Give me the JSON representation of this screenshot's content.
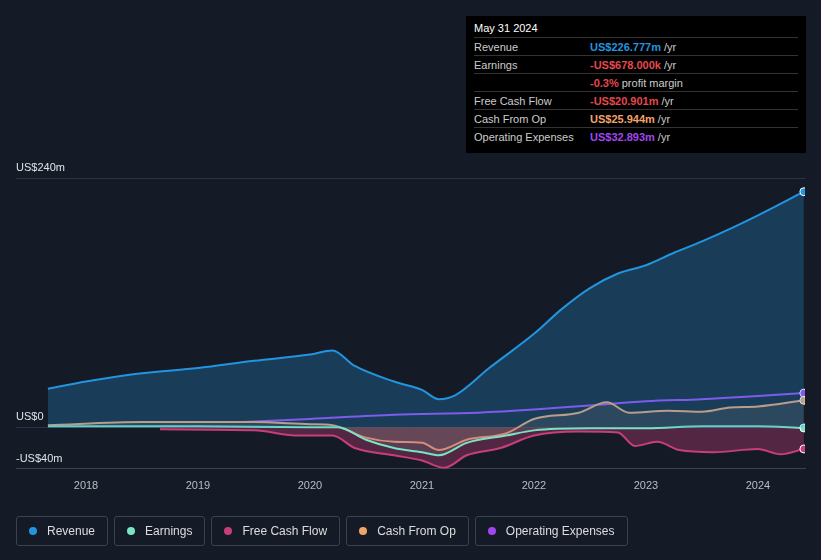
{
  "chart_data": {
    "type": "line",
    "xlim": [
      2017.375,
      2024.42
    ],
    "xticks": [
      2018,
      2019,
      2020,
      2021,
      2022,
      2023,
      2024
    ],
    "ylim": [
      -40,
      240
    ],
    "yticks": [
      {
        "value": -40,
        "label": "-US$40m"
      },
      {
        "value": 0,
        "label": "US$0"
      },
      {
        "value": 240,
        "label": "US$240m"
      }
    ],
    "grid": true,
    "legend": "bottom",
    "series": [
      {
        "name": "Revenue",
        "color": "#2394df",
        "x": [
          2017.66,
          2018.0,
          2018.5,
          2019.0,
          2019.5,
          2020.0,
          2020.2,
          2020.4,
          2020.75,
          2021.0,
          2021.15,
          2021.3,
          2021.6,
          2022.0,
          2022.25,
          2022.5,
          2022.75,
          2023.0,
          2023.25,
          2023.5,
          2023.75,
          2024.0,
          2024.41
        ],
        "values": [
          37,
          44,
          52,
          57,
          64,
          70,
          74,
          59,
          44,
          36,
          27,
          31,
          57,
          90,
          114,
          134,
          148,
          156,
          168,
          179,
          191,
          204,
          226.777
        ]
      },
      {
        "name": "Earnings",
        "color": "#7ae3c3",
        "x": [
          2017.66,
          2019.0,
          2020.0,
          2020.25,
          2020.5,
          2020.75,
          2021.0,
          2021.15,
          2021.4,
          2021.75,
          2022.0,
          2022.5,
          2023.0,
          2023.5,
          2024.0,
          2024.41
        ],
        "values": [
          1,
          1,
          0,
          0,
          -12,
          -20,
          -24,
          -27,
          -15,
          -8,
          -3,
          -1,
          -1,
          1,
          1,
          -0.678
        ]
      },
      {
        "name": "Free Cash Flow",
        "color": "#c83e7a",
        "x": [
          2018.66,
          2019.5,
          2019.9,
          2020.2,
          2020.4,
          2020.75,
          2021.0,
          2021.2,
          2021.4,
          2021.7,
          2022.0,
          2022.4,
          2022.75,
          2022.9,
          2023.1,
          2023.3,
          2023.6,
          2024.0,
          2024.2,
          2024.41
        ],
        "values": [
          -2,
          -3,
          -8,
          -8,
          -20,
          -27,
          -32,
          -39,
          -27,
          -20,
          -8,
          -4,
          -5,
          -18,
          -14,
          -22,
          -24,
          -21,
          -26,
          -20.901
        ]
      },
      {
        "name": "Cash From Op",
        "color": "#f2a36a",
        "x": [
          2017.66,
          2018.5,
          2019.5,
          2020.0,
          2020.2,
          2020.5,
          2020.75,
          2021.0,
          2021.15,
          2021.4,
          2021.75,
          2022.0,
          2022.4,
          2022.65,
          2022.85,
          2023.2,
          2023.5,
          2023.75,
          2024.0,
          2024.41
        ],
        "values": [
          2,
          5,
          5,
          3,
          2,
          -10,
          -14,
          -15,
          -22,
          -12,
          -6,
          8,
          14,
          24,
          14,
          16,
          15,
          19,
          20,
          25.944
        ]
      },
      {
        "name": "Operating Expenses",
        "color": "#a046f0",
        "x": [
          2019.4,
          2020.0,
          2020.75,
          2021.5,
          2022.0,
          2022.5,
          2023.0,
          2023.5,
          2024.0,
          2024.41
        ],
        "values": [
          5,
          8,
          12,
          14,
          17,
          21,
          25,
          27,
          30,
          32.893
        ]
      }
    ],
    "info_box": {
      "title": "May 31 2024",
      "rows": [
        {
          "label": "Revenue",
          "value": "US$226.777m",
          "unit": "/yr",
          "color": "#2394df"
        },
        {
          "label": "Earnings",
          "value": "-US$678.000k",
          "unit": "/yr",
          "color": "#e5484d"
        },
        {
          "value": "-0.3%",
          "unit": "profit margin",
          "color": "#e5484d"
        },
        {
          "label": "Free Cash Flow",
          "value": "-US$20.901m",
          "unit": "/yr",
          "color": "#e5484d"
        },
        {
          "label": "Cash From Op",
          "value": "US$25.944m",
          "unit": "/yr",
          "color": "#f2a36a"
        },
        {
          "label": "Operating Expenses",
          "value": "US$32.893m",
          "unit": "/yr",
          "color": "#a046f0"
        }
      ]
    }
  }
}
